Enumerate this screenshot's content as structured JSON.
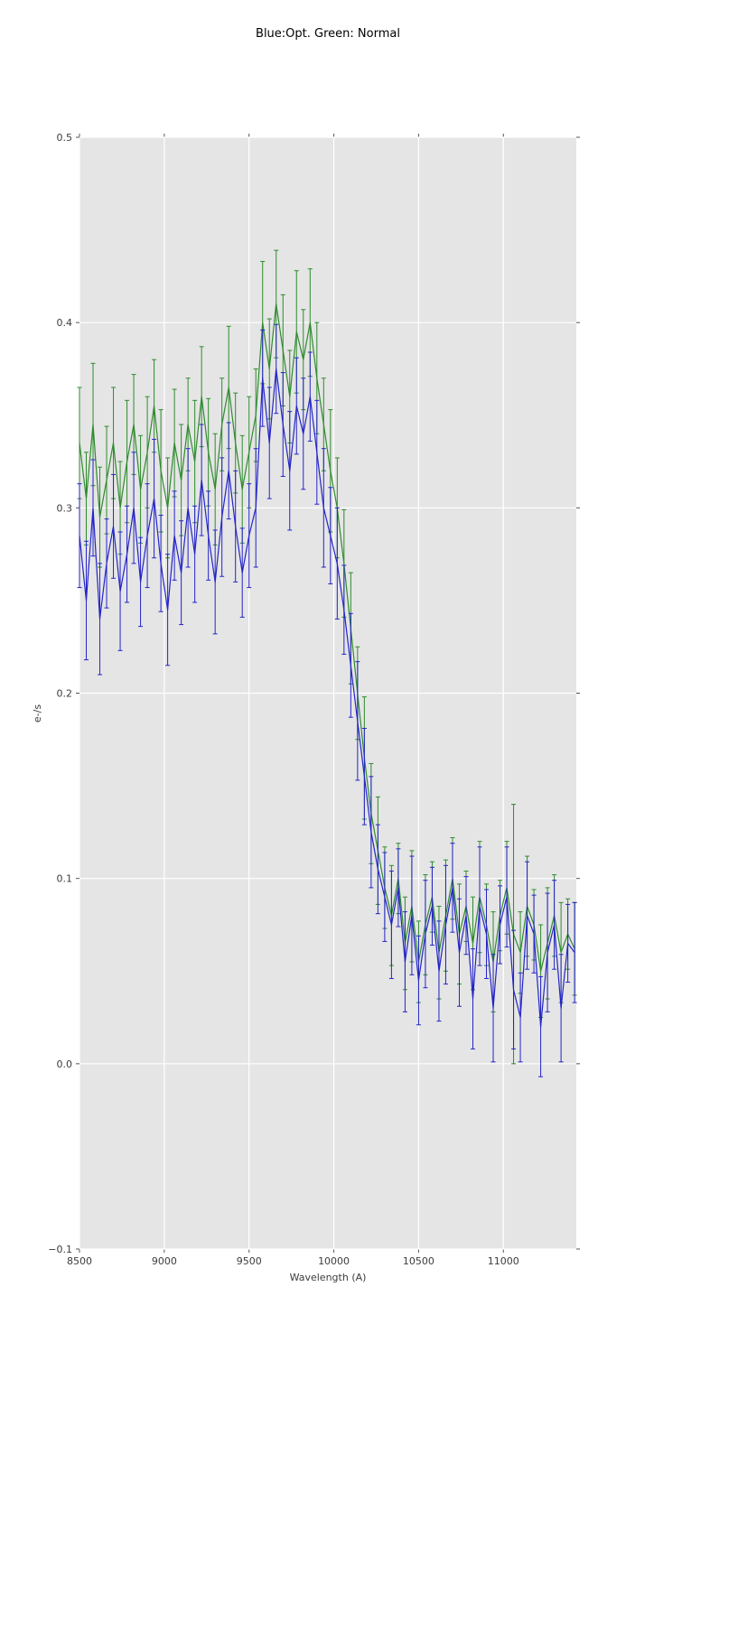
{
  "chart_data": {
    "type": "line",
    "title": "Blue:Opt. Green: Normal",
    "xlabel": "Wavelength (A)",
    "ylabel": "e-/s",
    "xlim": [
      8500,
      11430
    ],
    "ylim": [
      -0.1,
      0.5
    ],
    "plot_bg": "#e5e5e5",
    "grid_color": "#ffffff",
    "tick_color": "#555555",
    "text_color": "#3c3c3c",
    "grid": "on",
    "legend": "none (encoded in title)",
    "x_ticks": {
      "values": [
        8500,
        9000,
        9500,
        10000,
        10500,
        11000
      ],
      "labels": [
        "8500",
        "9000",
        "9500",
        "10000",
        "10500",
        "11000"
      ]
    },
    "y_ticks": {
      "values": [
        -0.1,
        0.0,
        0.1,
        0.2,
        0.3,
        0.4,
        0.5
      ],
      "labels": [
        "−0.1",
        "0.0",
        "0.1",
        "0.2",
        "0.3",
        "0.4",
        "0.5"
      ]
    },
    "x": [
      8500,
      8540,
      8580,
      8620,
      8660,
      8700,
      8740,
      8780,
      8820,
      8860,
      8900,
      8940,
      8980,
      9020,
      9060,
      9100,
      9140,
      9180,
      9220,
      9260,
      9300,
      9340,
      9380,
      9420,
      9460,
      9500,
      9540,
      9580,
      9620,
      9660,
      9700,
      9740,
      9780,
      9820,
      9860,
      9900,
      9940,
      9980,
      10020,
      10060,
      10100,
      10140,
      10180,
      10220,
      10260,
      10300,
      10340,
      10380,
      10420,
      10460,
      10500,
      10540,
      10580,
      10620,
      10660,
      10700,
      10740,
      10780,
      10820,
      10860,
      10900,
      10940,
      10980,
      11020,
      11060,
      11100,
      11140,
      11180,
      11220,
      11260,
      11300,
      11340,
      11380,
      11420
    ],
    "series": [
      {
        "name": "Normal",
        "color": "#2e8b2e",
        "values": [
          0.335,
          0.305,
          0.345,
          0.295,
          0.315,
          0.335,
          0.3,
          0.325,
          0.345,
          0.31,
          0.33,
          0.355,
          0.32,
          0.3,
          0.335,
          0.315,
          0.345,
          0.325,
          0.36,
          0.33,
          0.31,
          0.345,
          0.365,
          0.335,
          0.31,
          0.33,
          0.35,
          0.4,
          0.375,
          0.41,
          0.385,
          0.36,
          0.395,
          0.38,
          0.4,
          0.37,
          0.345,
          0.32,
          0.3,
          0.27,
          0.235,
          0.2,
          0.165,
          0.135,
          0.115,
          0.095,
          0.08,
          0.1,
          0.065,
          0.085,
          0.055,
          0.075,
          0.09,
          0.06,
          0.08,
          0.1,
          0.07,
          0.085,
          0.065,
          0.09,
          0.075,
          0.055,
          0.08,
          0.095,
          0.07,
          0.06,
          0.085,
          0.075,
          0.05,
          0.065,
          0.08,
          0.06,
          0.07,
          0.062
        ],
        "err": [
          0.03,
          0.025,
          0.033,
          0.027,
          0.029,
          0.03,
          0.025,
          0.033,
          0.027,
          0.029,
          0.03,
          0.025,
          0.033,
          0.027,
          0.029,
          0.03,
          0.025,
          0.033,
          0.027,
          0.029,
          0.03,
          0.025,
          0.033,
          0.027,
          0.029,
          0.03,
          0.025,
          0.033,
          0.027,
          0.029,
          0.03,
          0.025,
          0.033,
          0.027,
          0.029,
          0.03,
          0.025,
          0.033,
          0.027,
          0.029,
          0.03,
          0.025,
          0.033,
          0.027,
          0.029,
          0.022,
          0.027,
          0.019,
          0.025,
          0.03,
          0.022,
          0.027,
          0.019,
          0.025,
          0.03,
          0.022,
          0.027,
          0.019,
          0.025,
          0.03,
          0.022,
          0.027,
          0.019,
          0.025,
          0.07,
          0.022,
          0.027,
          0.019,
          0.025,
          0.03,
          0.022,
          0.027,
          0.019,
          0.025
        ]
      },
      {
        "name": "Opt",
        "color": "#2424c8",
        "values": [
          0.285,
          0.25,
          0.3,
          0.24,
          0.27,
          0.29,
          0.255,
          0.275,
          0.3,
          0.26,
          0.285,
          0.305,
          0.27,
          0.245,
          0.285,
          0.265,
          0.3,
          0.275,
          0.315,
          0.285,
          0.26,
          0.295,
          0.32,
          0.29,
          0.265,
          0.285,
          0.3,
          0.37,
          0.335,
          0.375,
          0.345,
          0.32,
          0.355,
          0.34,
          0.36,
          0.33,
          0.3,
          0.285,
          0.27,
          0.245,
          0.215,
          0.185,
          0.155,
          0.125,
          0.105,
          0.09,
          0.075,
          0.095,
          0.055,
          0.08,
          0.045,
          0.07,
          0.085,
          0.05,
          0.075,
          0.095,
          0.06,
          0.08,
          0.035,
          0.085,
          0.07,
          0.03,
          0.075,
          0.09,
          0.04,
          0.025,
          0.08,
          0.07,
          0.02,
          0.06,
          0.075,
          0.03,
          0.065,
          0.06
        ],
        "err": [
          0.028,
          0.032,
          0.026,
          0.03,
          0.024,
          0.028,
          0.032,
          0.026,
          0.03,
          0.024,
          0.028,
          0.032,
          0.026,
          0.03,
          0.024,
          0.028,
          0.032,
          0.026,
          0.03,
          0.024,
          0.028,
          0.032,
          0.026,
          0.03,
          0.024,
          0.028,
          0.032,
          0.026,
          0.03,
          0.024,
          0.028,
          0.032,
          0.026,
          0.03,
          0.024,
          0.028,
          0.032,
          0.026,
          0.03,
          0.024,
          0.028,
          0.032,
          0.026,
          0.03,
          0.024,
          0.024,
          0.029,
          0.021,
          0.027,
          0.032,
          0.024,
          0.029,
          0.021,
          0.027,
          0.032,
          0.024,
          0.029,
          0.021,
          0.027,
          0.032,
          0.024,
          0.029,
          0.021,
          0.027,
          0.032,
          0.024,
          0.029,
          0.021,
          0.027,
          0.032,
          0.024,
          0.029,
          0.021,
          0.027
        ]
      }
    ]
  }
}
